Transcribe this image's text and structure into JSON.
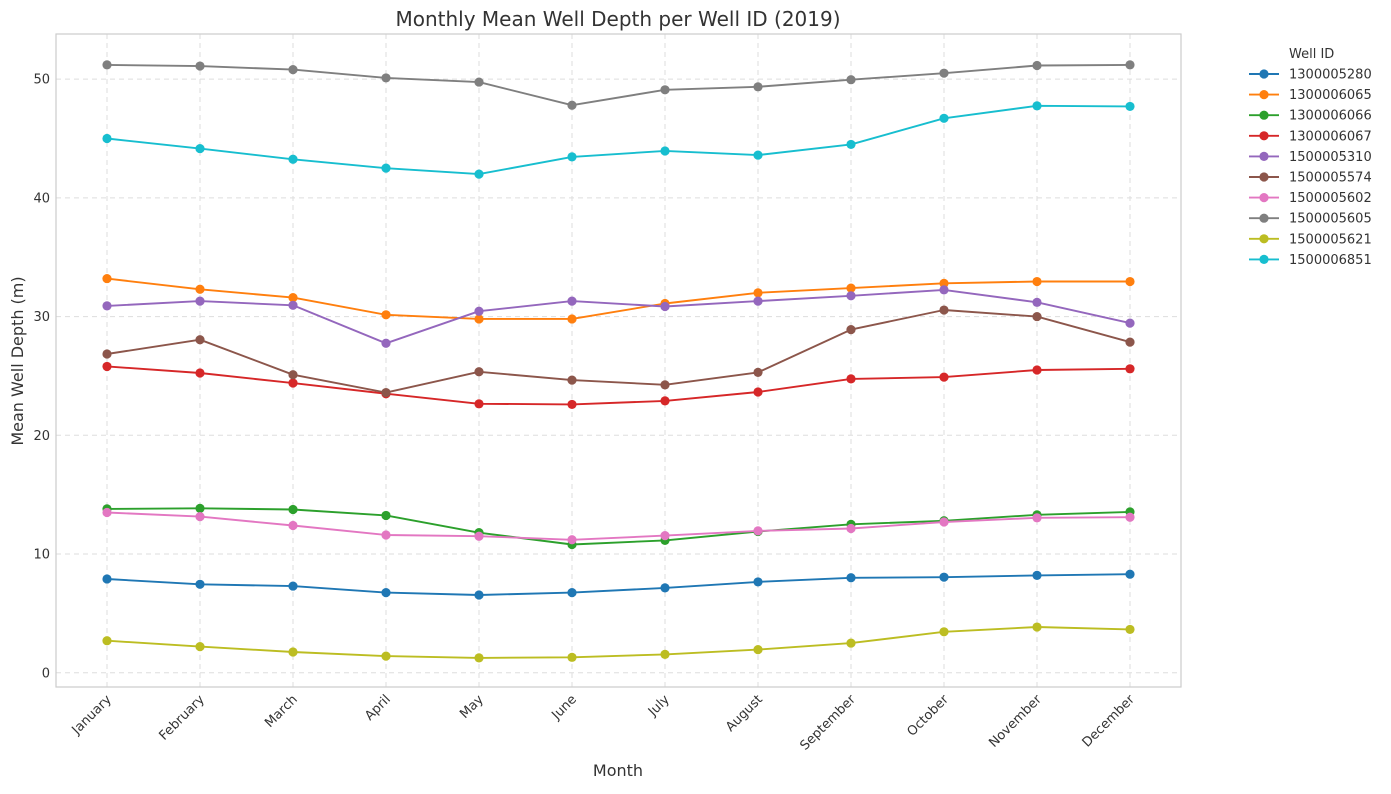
{
  "chart_data": {
    "type": "line",
    "title": "Monthly Mean Well Depth per Well ID (2019)",
    "xlabel": "Month",
    "ylabel": "Mean Well Depth (m)",
    "categories": [
      "January",
      "February",
      "March",
      "April",
      "May",
      "June",
      "July",
      "August",
      "September",
      "October",
      "November",
      "December"
    ],
    "ylim": [
      -1.2,
      53.8
    ],
    "yticks": [
      0,
      10,
      20,
      30,
      40,
      50
    ],
    "grid": true,
    "legend": {
      "title": "Well ID",
      "placement": "outside-right"
    },
    "series": [
      {
        "name": "1300005280",
        "color": "#1f77b4",
        "values": [
          7.9,
          7.45,
          7.3,
          6.75,
          6.55,
          6.75,
          7.15,
          7.65,
          8.0,
          8.05,
          8.2,
          8.3
        ]
      },
      {
        "name": "1300006065",
        "color": "#ff7f0e",
        "values": [
          33.2,
          32.3,
          31.6,
          30.15,
          29.8,
          29.8,
          31.1,
          32.0,
          32.4,
          32.8,
          32.95,
          32.95
        ]
      },
      {
        "name": "1300006066",
        "color": "#2ca02c",
        "values": [
          13.8,
          13.85,
          13.75,
          13.25,
          11.8,
          10.8,
          11.15,
          11.9,
          12.5,
          12.8,
          13.3,
          13.55
        ]
      },
      {
        "name": "1300006067",
        "color": "#d62728",
        "values": [
          25.8,
          25.25,
          24.4,
          23.5,
          22.65,
          22.6,
          22.9,
          23.65,
          24.75,
          24.9,
          25.5,
          25.6
        ]
      },
      {
        "name": "1500005310",
        "color": "#9467bd",
        "values": [
          30.9,
          31.3,
          30.95,
          27.75,
          30.45,
          31.3,
          30.85,
          31.3,
          31.75,
          32.25,
          31.2,
          29.45
        ]
      },
      {
        "name": "1500005574",
        "color": "#8c564b",
        "values": [
          26.85,
          28.05,
          25.1,
          23.6,
          25.35,
          24.65,
          24.25,
          25.3,
          28.9,
          30.55,
          30.0,
          27.85
        ]
      },
      {
        "name": "1500005602",
        "color": "#e377c2",
        "values": [
          13.5,
          13.15,
          12.4,
          11.6,
          11.5,
          11.2,
          11.55,
          11.95,
          12.15,
          12.7,
          13.05,
          13.1
        ]
      },
      {
        "name": "1500005605",
        "color": "#7f7f7f",
        "values": [
          51.2,
          51.1,
          50.8,
          50.1,
          49.75,
          47.8,
          49.1,
          49.35,
          49.95,
          50.5,
          51.15,
          51.2
        ]
      },
      {
        "name": "1500005621",
        "color": "#bcbd22",
        "values": [
          2.7,
          2.2,
          1.75,
          1.4,
          1.25,
          1.3,
          1.55,
          1.95,
          2.5,
          3.45,
          3.85,
          3.65
        ]
      },
      {
        "name": "1500006851",
        "color": "#17becf",
        "values": [
          45.0,
          44.15,
          43.25,
          42.5,
          42.0,
          43.45,
          43.95,
          43.6,
          44.5,
          46.7,
          47.75,
          47.7
        ]
      }
    ]
  }
}
